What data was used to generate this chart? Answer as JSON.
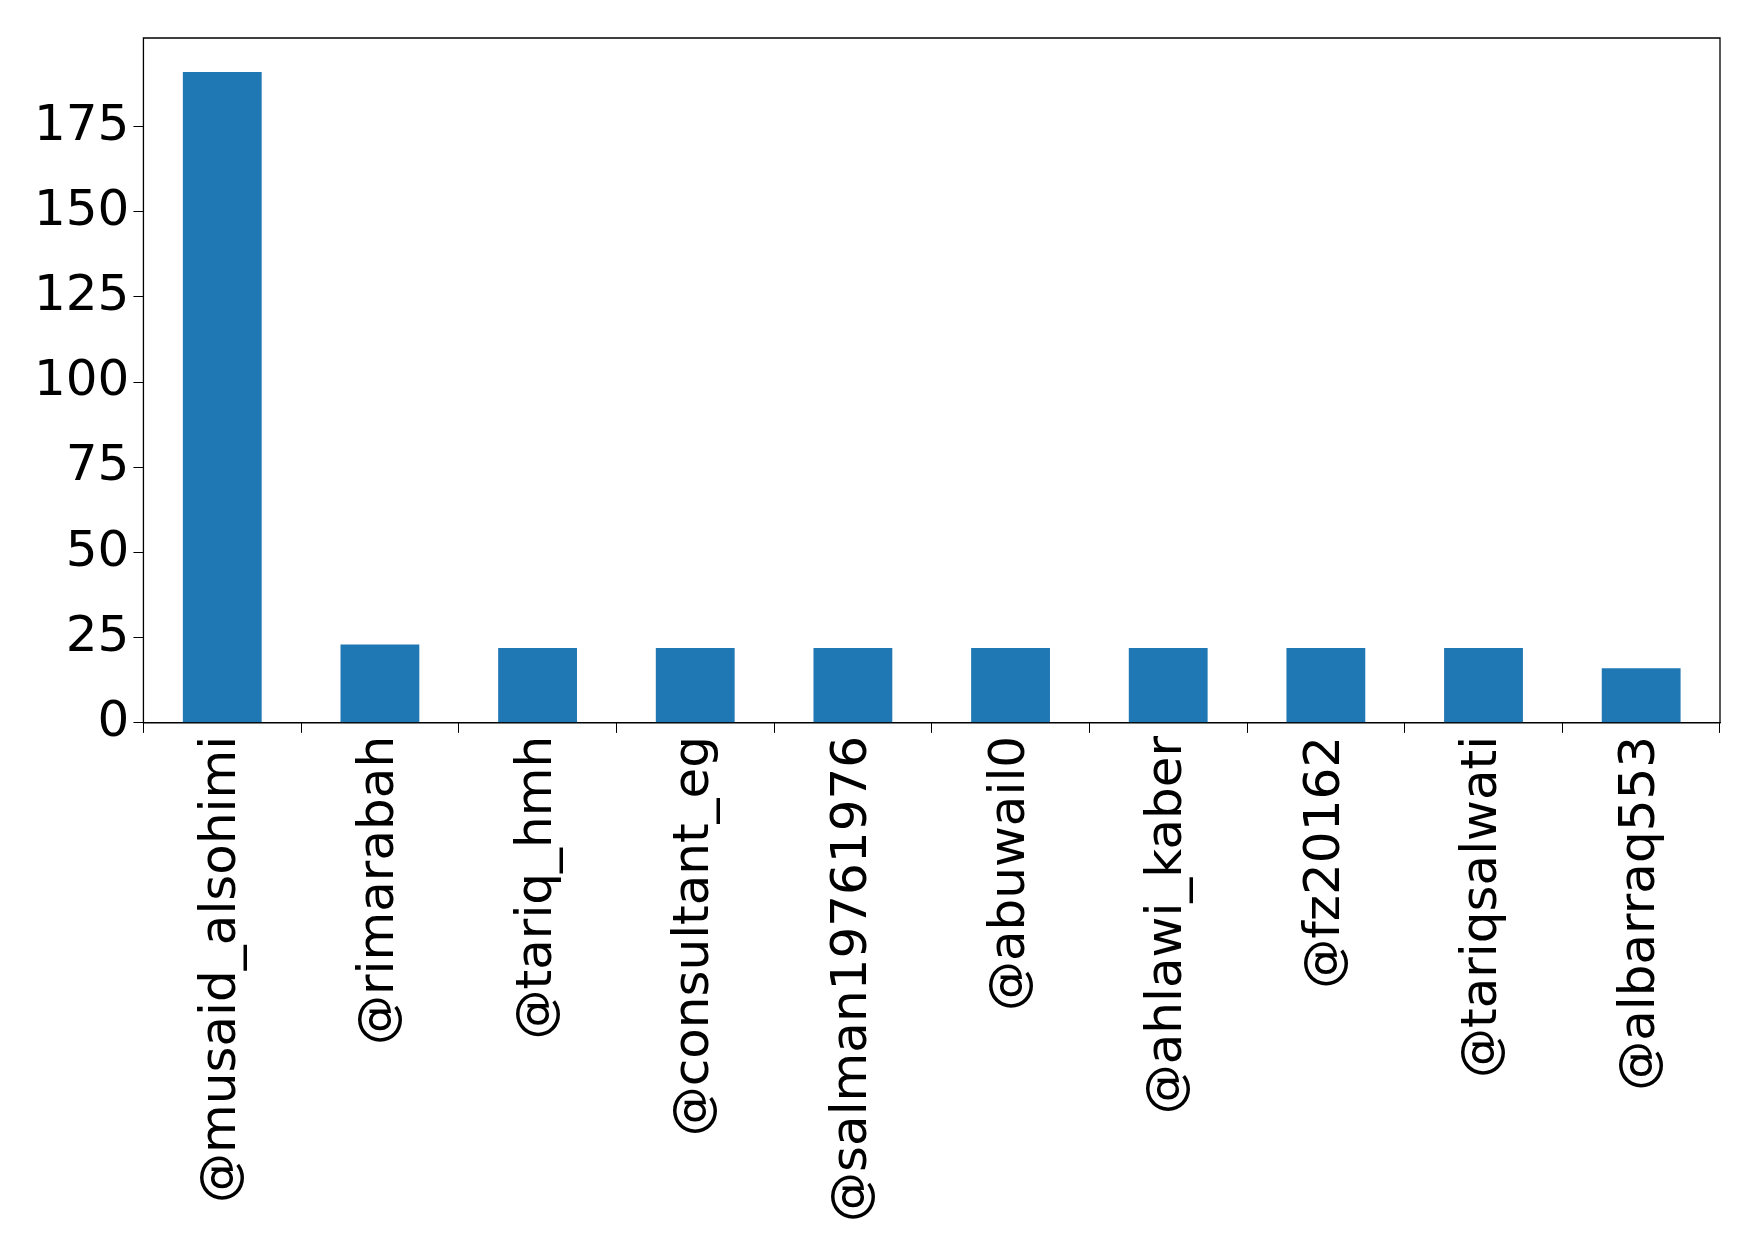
{
  "chart_data": {
    "type": "bar",
    "categories": [
      "@musaid_alsohimi",
      "@rimarabah",
      "@tariq_hmh",
      "@consultant_eg",
      "@salman19761976",
      "@abuwail0",
      "@ahlawi_kaber",
      "@fz20162",
      "@tariqsalwati",
      "@albarraq553"
    ],
    "values": [
      191,
      23,
      22,
      22,
      22,
      22,
      22,
      22,
      22,
      16
    ],
    "color": "#1f77b4",
    "ylim": [
      0,
      201
    ],
    "yticks": [
      0,
      25,
      50,
      75,
      100,
      125,
      150,
      175
    ],
    "grid": false,
    "legend": false
  }
}
